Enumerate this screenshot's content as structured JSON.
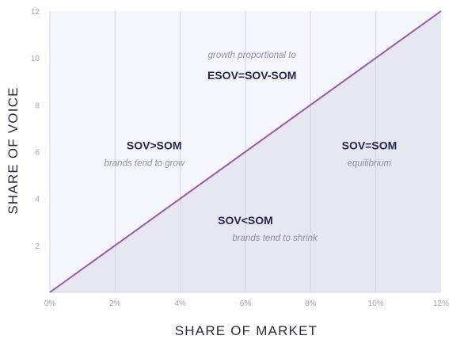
{
  "chart_data": {
    "type": "line",
    "xlabel": "SHARE OF MARKET",
    "ylabel": "SHARE OF VOICE",
    "xlim": [
      0,
      12
    ],
    "ylim": [
      0,
      12
    ],
    "x_ticks": [
      {
        "value": 0,
        "label": "0%"
      },
      {
        "value": 2,
        "label": "2%"
      },
      {
        "value": 4,
        "label": "4%"
      },
      {
        "value": 6,
        "label": "6%"
      },
      {
        "value": 8,
        "label": "8%"
      },
      {
        "value": 10,
        "label": "10%"
      },
      {
        "value": 12,
        "label": "12%"
      }
    ],
    "y_ticks": [
      {
        "value": 2,
        "label": "2"
      },
      {
        "value": 4,
        "label": "4"
      },
      {
        "value": 6,
        "label": "6"
      },
      {
        "value": 8,
        "label": "8"
      },
      {
        "value": 10,
        "label": "10"
      },
      {
        "value": 12,
        "label": "12"
      }
    ],
    "grid": "vertical",
    "series": [
      {
        "x": [
          0,
          12
        ],
        "y": [
          0,
          12
        ],
        "color": "#9b59a8"
      }
    ],
    "regions": {
      "above_fill": "#f5f6fb",
      "below_fill": "#e6e7f0"
    },
    "annotations": [
      {
        "text": "growth proportional to",
        "x": 6.2,
        "y": 10.0,
        "style": "italic"
      },
      {
        "text": "ESOV=SOV-SOM",
        "x": 6.2,
        "y": 9.1,
        "style": "bold"
      },
      {
        "text": "SOV>SOM",
        "x": 3.2,
        "y": 6.1,
        "style": "bold"
      },
      {
        "text": "brands tend to grow",
        "x": 2.9,
        "y": 5.4,
        "style": "italic"
      },
      {
        "text": "SOV=SOM",
        "x": 9.8,
        "y": 6.1,
        "style": "bold"
      },
      {
        "text": "equilibrium",
        "x": 9.8,
        "y": 5.4,
        "style": "italic"
      },
      {
        "text": "SOV<SOM",
        "x": 6.0,
        "y": 2.9,
        "style": "bold"
      },
      {
        "text": "brands tend to shrink",
        "x": 6.9,
        "y": 2.2,
        "style": "italic"
      }
    ]
  }
}
